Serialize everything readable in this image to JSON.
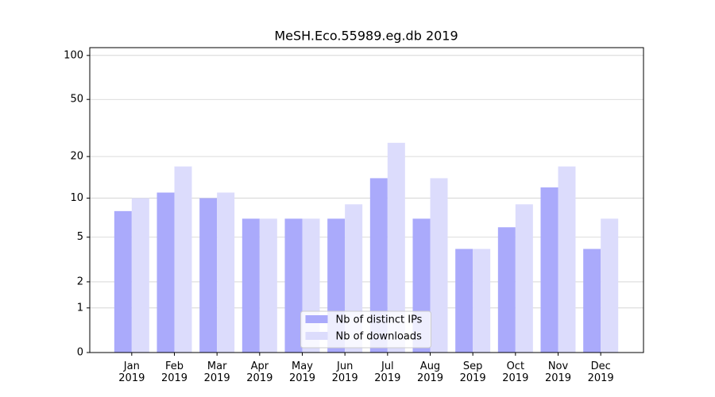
{
  "chart_data": {
    "type": "bar",
    "title": "MeSH.Eco.55989.eg.db 2019",
    "categories": [
      "Jan\n2019",
      "Feb\n2019",
      "Mar\n2019",
      "Apr\n2019",
      "May\n2019",
      "Jun\n2019",
      "Jul\n2019",
      "Aug\n2019",
      "Sep\n2019",
      "Oct\n2019",
      "Nov\n2019",
      "Dec\n2019"
    ],
    "series": [
      {
        "name": "Nb of distinct IPs",
        "color": "#aaaafb",
        "values": [
          8,
          11,
          10,
          7,
          7,
          7,
          14,
          7,
          4,
          6,
          12,
          4
        ]
      },
      {
        "name": "Nb of downloads",
        "color": "#dcdcfc",
        "values": [
          10,
          17,
          11,
          7,
          7,
          9,
          25,
          14,
          4,
          9,
          17,
          7
        ]
      }
    ],
    "yscale": "log1p",
    "ylim": [
      0,
      113
    ],
    "yticks": [
      0,
      1,
      2,
      5,
      10,
      20,
      50,
      100
    ],
    "grid": true,
    "legend": "lower center"
  }
}
